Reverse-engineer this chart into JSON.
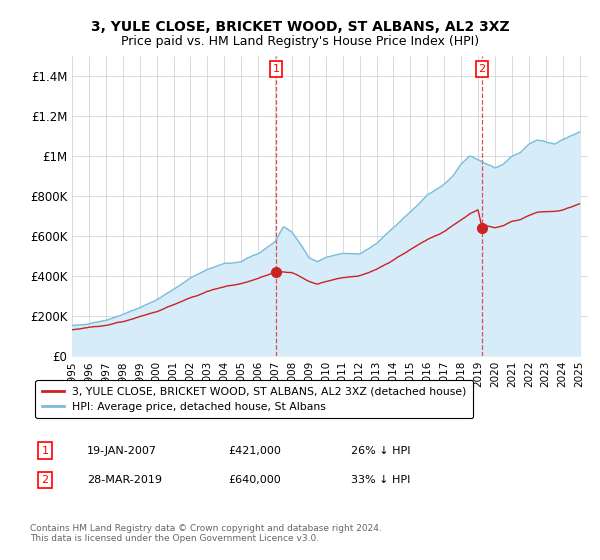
{
  "title": "3, YULE CLOSE, BRICKET WOOD, ST ALBANS, AL2 3XZ",
  "subtitle": "Price paid vs. HM Land Registry's House Price Index (HPI)",
  "ylim": [
    0,
    1500000
  ],
  "yticks": [
    0,
    200000,
    400000,
    600000,
    800000,
    1000000,
    1200000,
    1400000
  ],
  "ytick_labels": [
    "£0",
    "£200K",
    "£400K",
    "£600K",
    "£800K",
    "£1M",
    "£1.2M",
    "£1.4M"
  ],
  "hpi_color": "#7bbcdc",
  "hpi_fill_color": "#d6ecf8",
  "price_color": "#cc2222",
  "marker1_date": 2007.05,
  "marker1_price": 421000,
  "marker2_date": 2019.23,
  "marker2_price": 640000,
  "legend_line1": "3, YULE CLOSE, BRICKET WOOD, ST ALBANS, AL2 3XZ (detached house)",
  "legend_line2": "HPI: Average price, detached house, St Albans",
  "note1_num": "1",
  "note1_date": "19-JAN-2007",
  "note1_price": "£421,000",
  "note1_hpi": "26% ↓ HPI",
  "note2_num": "2",
  "note2_date": "28-MAR-2019",
  "note2_price": "£640,000",
  "note2_hpi": "33% ↓ HPI",
  "footer": "Contains HM Land Registry data © Crown copyright and database right 2024.\nThis data is licensed under the Open Government Licence v3.0.",
  "background_color": "#ffffff",
  "grid_color": "#cccccc"
}
